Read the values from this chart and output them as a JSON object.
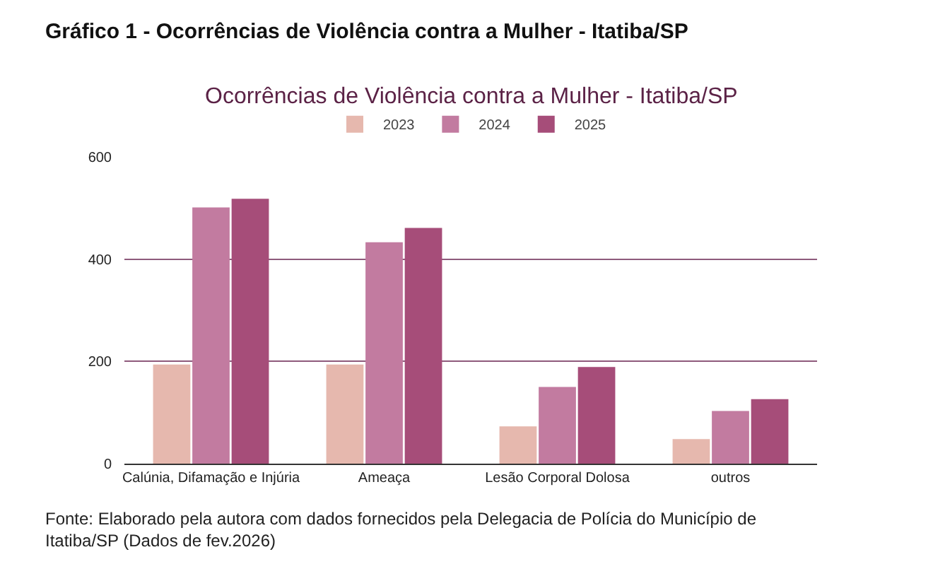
{
  "chart_data": {
    "type": "bar",
    "title": "Gráfico 1 - Ocorrências de Violência contra a Mulher - Itatiba/SP",
    "subtitle": "Ocorrências de Violência contra a Mulher - Itatiba/SP",
    "categories": [
      "Calúnia, Difamação e Injúria",
      "Ameaça",
      "Lesão Corporal Dolosa",
      "outros"
    ],
    "series": [
      {
        "name": "2023",
        "color": "#e6b8ae",
        "values": [
          194,
          194,
          73,
          48
        ]
      },
      {
        "name": "2024",
        "color": "#c27ba0",
        "values": [
          501,
          433,
          150,
          103
        ]
      },
      {
        "name": "2025",
        "color": "#a64d79",
        "values": [
          518,
          461,
          189,
          126
        ]
      }
    ],
    "ylim": [
      0,
      600
    ],
    "yticks": [
      0,
      200,
      400,
      600
    ],
    "grid": "y",
    "legend": "top",
    "annotations": [
      "Fonte: Elaborado pela autora com dados fornecidos pela Delegacia de Polícia do Município de Itatiba/SP (Dados de fev.2026)"
    ]
  }
}
